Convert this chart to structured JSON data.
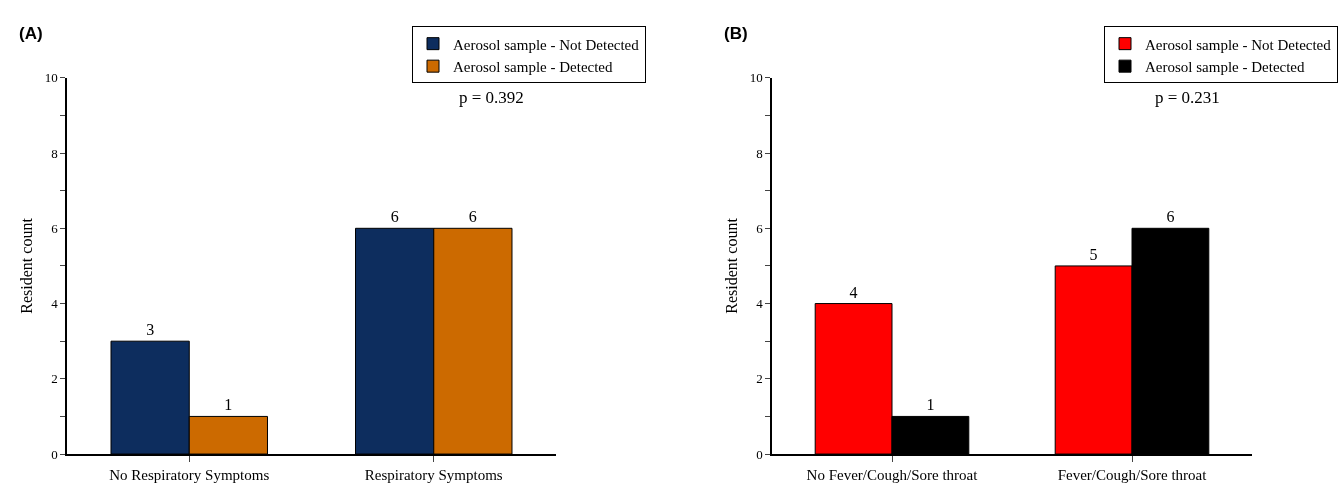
{
  "chart_data": [
    {
      "type": "bar",
      "title": "(A)",
      "ylabel": "Resident count",
      "categories": [
        "No Respiratory Symptoms",
        "Respiratory Symptoms"
      ],
      "series": [
        {
          "name": "Aerosol sample - Not Detected",
          "color": "#0d2d5e",
          "values": [
            3,
            6
          ]
        },
        {
          "name": "Aerosol sample - Detected",
          "color": "#cc6a00",
          "values": [
            1,
            6
          ]
        }
      ],
      "ylim": [
        0,
        10
      ],
      "yticks": [
        0,
        {
          "value": 1,
          "label": null
        },
        2,
        {
          "value": 3,
          "label": null
        },
        4,
        {
          "value": 5,
          "label": null
        },
        6,
        {
          "value": 7,
          "label": null
        },
        8,
        {
          "value": 9,
          "label": null
        },
        10
      ],
      "annotations": [
        "p = 0.392"
      ],
      "data_labels": true,
      "legend": "top right"
    },
    {
      "type": "bar",
      "title": "(B)",
      "ylabel": "Resident count",
      "categories": [
        "No Fever/Cough/Sore throat",
        "Fever/Cough/Sore throat"
      ],
      "series": [
        {
          "name": "Aerosol sample - Not Detected",
          "color": "#ff0000",
          "values": [
            4,
            5
          ]
        },
        {
          "name": "Aerosol sample - Detected",
          "color": "#000000",
          "values": [
            1,
            6
          ]
        }
      ],
      "ylim": [
        0,
        10
      ],
      "yticks": [
        0,
        {
          "value": 1,
          "label": null
        },
        2,
        {
          "value": 3,
          "label": null
        },
        4,
        {
          "value": 5,
          "label": null
        },
        6,
        {
          "value": 7,
          "label": null
        },
        8,
        {
          "value": 9,
          "label": null
        },
        10
      ],
      "annotations": [
        "p = 0.231"
      ],
      "data_labels": true,
      "legend": "top right"
    }
  ]
}
